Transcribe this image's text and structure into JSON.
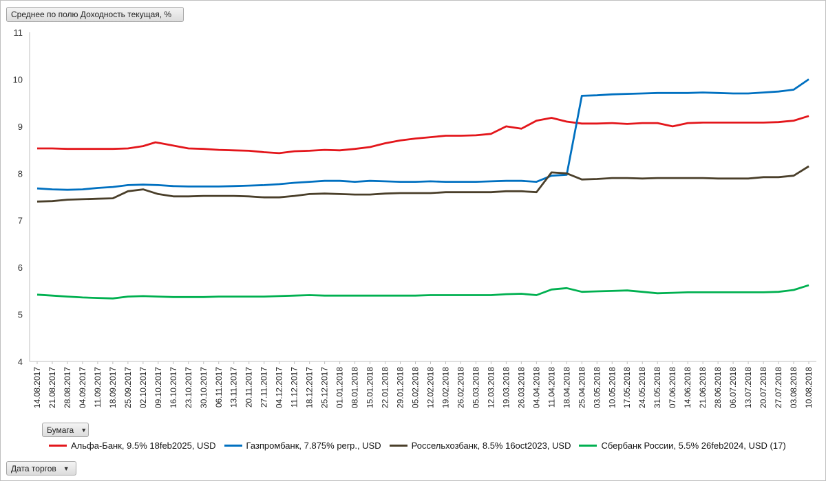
{
  "pivot": {
    "field_button": "Среднее по полю Доходность текущая, %",
    "series_button": "Бумага",
    "axis_button": "Дата торгов"
  },
  "chart_data": {
    "type": "line",
    "title": "",
    "xlabel": "",
    "ylabel": "",
    "ylim": [
      4,
      11
    ],
    "yticks": [
      4,
      5,
      6,
      7,
      8,
      9,
      10,
      11
    ],
    "grid": false,
    "legend_position": "bottom",
    "x_tick_labels": [
      "14.08.2017",
      "21.08.2017",
      "28.08.2017",
      "04.09.2017",
      "11.09.2017",
      "18.09.2017",
      "25.09.2017",
      "02.10.2017",
      "09.10.2017",
      "16.10.2017",
      "23.10.2017",
      "30.10.2017",
      "06.11.2017",
      "13.11.2017",
      "20.11.2017",
      "27.11.2017",
      "04.12.2017",
      "11.12.2017",
      "18.12.2017",
      "25.12.2017",
      "01.01.2018",
      "08.01.2018",
      "15.01.2018",
      "22.01.2018",
      "29.01.2018",
      "05.02.2018",
      "12.02.2018",
      "19.02.2018",
      "26.02.2018",
      "05.03.2018",
      "12.03.2018",
      "19.03.2018",
      "26.03.2018",
      "04.04.2018",
      "11.04.2018",
      "18.04.2018",
      "25.04.2018",
      "03.05.2018",
      "10.05.2018",
      "17.05.2018",
      "24.05.2018",
      "31.05.2018",
      "07.06.2018",
      "14.06.2018",
      "21.06.2018",
      "28.06.2018",
      "06.07.2018",
      "13.07.2018",
      "20.07.2018",
      "27.07.2018",
      "03.08.2018",
      "10.08.2018"
    ],
    "series": [
      {
        "name": "Альфа-Банк, 9.5% 18feb2025, USD",
        "color": "#e3161b",
        "values": [
          8.53,
          8.53,
          8.52,
          8.52,
          8.52,
          8.52,
          8.53,
          8.58,
          [
            8.66,
            8.64
          ],
          8.59,
          8.53,
          8.52,
          8.5,
          8.49,
          8.48,
          8.45,
          8.43,
          8.47,
          8.48,
          8.5,
          8.49,
          8.52,
          8.56,
          8.64,
          8.7,
          8.74,
          8.77,
          8.8,
          8.8,
          8.81,
          8.84,
          9.0,
          8.95,
          9.12,
          9.18,
          9.1,
          9.06,
          9.06,
          9.07,
          9.05,
          9.07,
          9.07,
          9.0,
          9.07,
          9.08,
          9.08,
          9.08,
          9.08,
          9.08,
          9.09,
          9.12,
          9.22
        ]
      },
      {
        "name": "Газпромбанк, 7.875% perp., USD",
        "color": "#0070c0",
        "values": [
          7.68,
          7.66,
          7.65,
          7.66,
          7.69,
          7.71,
          7.75,
          7.76,
          7.75,
          7.73,
          7.72,
          7.72,
          7.72,
          7.73,
          7.74,
          7.75,
          7.77,
          7.8,
          7.82,
          7.84,
          7.84,
          7.82,
          7.84,
          7.83,
          7.82,
          7.82,
          7.83,
          7.82,
          7.82,
          7.82,
          7.83,
          7.84,
          7.84,
          7.82,
          7.95,
          7.97,
          9.65,
          9.66,
          9.68,
          9.69,
          9.7,
          9.71,
          9.71,
          9.71,
          9.72,
          9.71,
          9.7,
          9.7,
          9.72,
          9.74,
          9.78,
          10.0
        ]
      },
      {
        "name": "Россельхозбанк, 8.5% 16oct2023, USD",
        "color": "#4a3f2a",
        "values": [
          7.4,
          7.41,
          7.44,
          7.45,
          7.46,
          7.47,
          7.62,
          7.66,
          7.56,
          7.51,
          7.51,
          7.52,
          7.52,
          7.52,
          7.51,
          7.49,
          7.49,
          7.52,
          7.56,
          7.57,
          7.56,
          7.55,
          7.55,
          7.57,
          7.58,
          7.58,
          7.58,
          7.6,
          7.6,
          7.6,
          7.6,
          7.62,
          7.62,
          7.6,
          8.02,
          8.0,
          7.87,
          7.88,
          7.9,
          7.9,
          7.89,
          7.9,
          7.9,
          7.9,
          7.9,
          7.89,
          7.89,
          7.89,
          7.92,
          7.92,
          7.95,
          8.15
        ]
      },
      {
        "name": "Сбербанк России, 5.5% 26feb2024, USD (17)",
        "color": "#00b050",
        "values": [
          5.42,
          5.4,
          5.38,
          5.36,
          5.35,
          5.34,
          5.38,
          5.39,
          5.38,
          5.37,
          5.37,
          5.37,
          5.38,
          5.38,
          5.38,
          5.38,
          5.39,
          5.4,
          5.41,
          5.4,
          5.4,
          5.4,
          5.4,
          5.4,
          5.4,
          5.4,
          5.41,
          5.41,
          5.41,
          5.41,
          5.41,
          5.43,
          5.44,
          5.41,
          5.53,
          5.56,
          5.48,
          5.49,
          5.5,
          5.51,
          5.48,
          5.45,
          5.46,
          5.47,
          5.47,
          5.47,
          5.47,
          5.47,
          5.47,
          5.48,
          5.52,
          5.62
        ]
      }
    ]
  }
}
